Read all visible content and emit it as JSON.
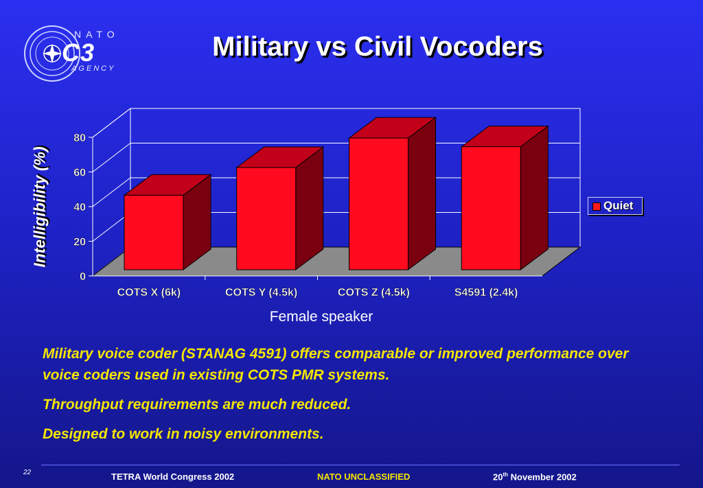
{
  "slide": {
    "title": "Military vs Civil Vocoders",
    "page_number": "22"
  },
  "logo": {
    "line1": "NATO",
    "line2": "C3",
    "line3": "AGENCY"
  },
  "colors": {
    "bar_front": "#ff0a1e",
    "bar_top": "#c2001a",
    "bar_side": "#7a0010",
    "floor": "#8a8a8a",
    "body_text": "#f5e600",
    "footer_center": "#f5e600"
  },
  "chart_data": {
    "type": "bar",
    "categories": [
      "COTS X (6k)",
      "COTS Y (4.5k)",
      "COTS Z (4.5k)",
      "S4591 (2.4k)"
    ],
    "series": [
      {
        "name": "Quiet",
        "values": [
          43,
          59,
          76,
          71
        ]
      }
    ],
    "title": "",
    "xlabel": "Female speaker",
    "ylabel": "Intelligibility (%)",
    "ylim": [
      0,
      80
    ],
    "yticks": [
      0,
      20,
      40,
      60,
      80
    ],
    "grid": true,
    "legend": "right",
    "style": "3d"
  },
  "body": {
    "p1": "Military voice coder (STANAG 4591) offers comparable or improved performance over voice coders used in existing COTS PMR systems.",
    "p2": "Throughput requirements are much reduced.",
    "p3": "Designed to work in noisy environments."
  },
  "footer": {
    "left": "TETRA World Congress 2002",
    "center": "NATO UNCLASSIFIED",
    "right_prefix": "20",
    "right_sup": "th",
    "right_suffix": " November 2002"
  }
}
